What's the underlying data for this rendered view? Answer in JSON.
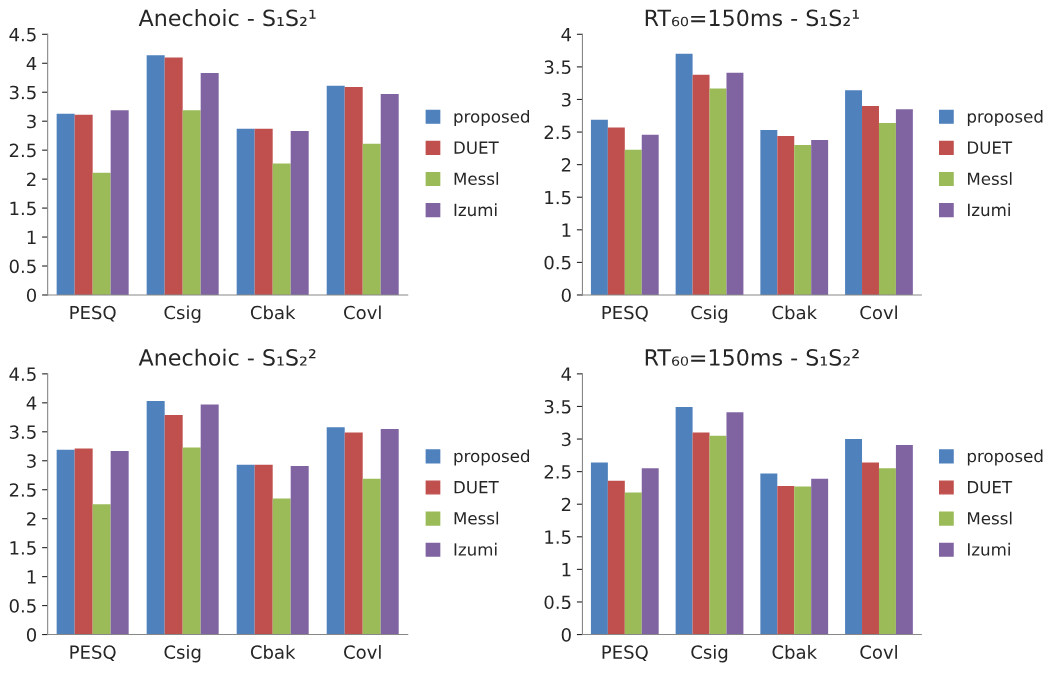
{
  "chart_data": [
    {
      "type": "bar",
      "title": "Anechoic - S₁S₂¹",
      "categories": [
        "PESQ",
        "Csig",
        "Cbak",
        "Covl"
      ],
      "ylim": [
        0,
        4.5
      ],
      "yticks": [
        0,
        0.5,
        1,
        1.5,
        2,
        2.5,
        3,
        3.5,
        4,
        4.5
      ],
      "legend": "right",
      "series": [
        {
          "name": "proposed",
          "color": "#4f81bd",
          "values": [
            3.13,
            4.14,
            2.87,
            3.61
          ]
        },
        {
          "name": "DUET",
          "color": "#c0504d",
          "values": [
            3.11,
            4.1,
            2.87,
            3.59
          ]
        },
        {
          "name": "Messl",
          "color": "#9bbb59",
          "values": [
            2.11,
            3.19,
            2.27,
            2.61
          ]
        },
        {
          "name": "Izumi",
          "color": "#8064a2",
          "values": [
            3.19,
            3.83,
            2.83,
            3.47
          ]
        }
      ]
    },
    {
      "type": "bar",
      "title": "RT₆₀=150ms - S₁S₂¹",
      "categories": [
        "PESQ",
        "Csig",
        "Cbak",
        "Covl"
      ],
      "ylim": [
        0,
        4
      ],
      "yticks": [
        0,
        0.5,
        1,
        1.5,
        2,
        2.5,
        3,
        3.5,
        4
      ],
      "legend": "right",
      "series": [
        {
          "name": "proposed",
          "color": "#4f81bd",
          "values": [
            2.69,
            3.7,
            2.53,
            3.14
          ]
        },
        {
          "name": "DUET",
          "color": "#c0504d",
          "values": [
            2.57,
            3.38,
            2.44,
            2.9
          ]
        },
        {
          "name": "Messl",
          "color": "#9bbb59",
          "values": [
            2.23,
            3.17,
            2.3,
            2.64
          ]
        },
        {
          "name": "Izumi",
          "color": "#8064a2",
          "values": [
            2.46,
            3.41,
            2.38,
            2.85
          ]
        }
      ]
    },
    {
      "type": "bar",
      "title": "Anechoic - S₁S₂²",
      "categories": [
        "PESQ",
        "Csig",
        "Cbak",
        "Covl"
      ],
      "ylim": [
        0,
        4.5
      ],
      "yticks": [
        0,
        0.5,
        1,
        1.5,
        2,
        2.5,
        3,
        3.5,
        4,
        4.5
      ],
      "legend": "right",
      "series": [
        {
          "name": "proposed",
          "color": "#4f81bd",
          "values": [
            3.19,
            4.03,
            2.93,
            3.58
          ]
        },
        {
          "name": "DUET",
          "color": "#c0504d",
          "values": [
            3.21,
            3.79,
            2.93,
            3.49
          ]
        },
        {
          "name": "Messl",
          "color": "#9bbb59",
          "values": [
            2.25,
            3.23,
            2.35,
            2.69
          ]
        },
        {
          "name": "Izumi",
          "color": "#8064a2",
          "values": [
            3.17,
            3.97,
            2.91,
            3.55
          ]
        }
      ]
    },
    {
      "type": "bar",
      "title": "RT₆₀=150ms - S₁S₂²",
      "categories": [
        "PESQ",
        "Csig",
        "Cbak",
        "Covl"
      ],
      "ylim": [
        0,
        4
      ],
      "yticks": [
        0,
        0.5,
        1,
        1.5,
        2,
        2.5,
        3,
        3.5,
        4
      ],
      "legend": "right",
      "series": [
        {
          "name": "proposed",
          "color": "#4f81bd",
          "values": [
            2.64,
            3.49,
            2.47,
            3.0
          ]
        },
        {
          "name": "DUET",
          "color": "#c0504d",
          "values": [
            2.36,
            3.1,
            2.28,
            2.64
          ]
        },
        {
          "name": "Messl",
          "color": "#9bbb59",
          "values": [
            2.18,
            3.05,
            2.27,
            2.55
          ]
        },
        {
          "name": "Izumi",
          "color": "#8064a2",
          "values": [
            2.55,
            3.41,
            2.39,
            2.91
          ]
        }
      ]
    }
  ]
}
